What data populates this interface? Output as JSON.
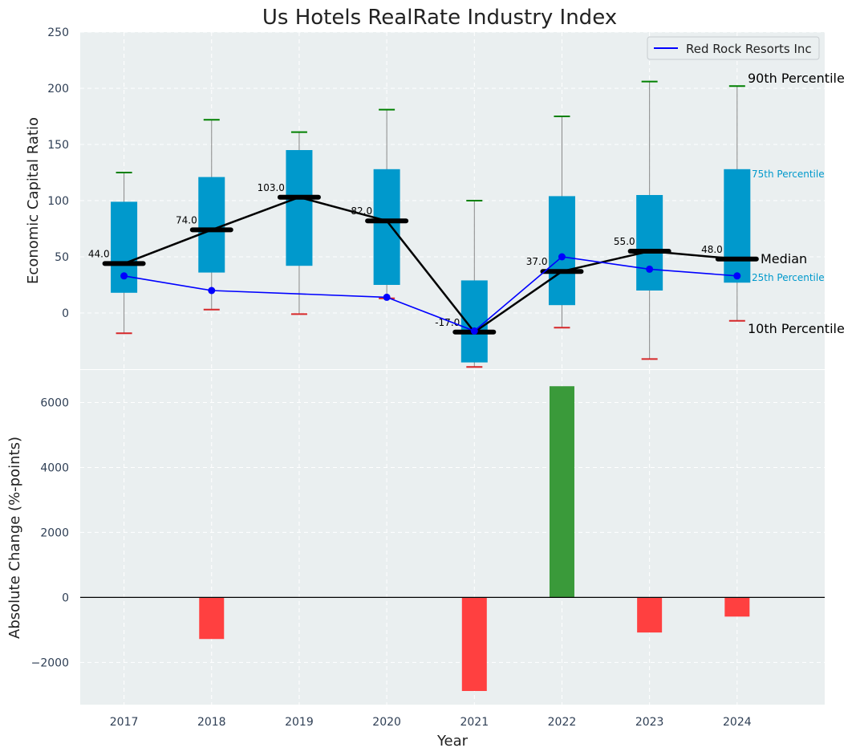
{
  "colors": {
    "panel_bg": "#eaeff0",
    "box": "#0099cc",
    "whisker": "#888888",
    "p90_cap": "#008000",
    "p10_cap": "#d62728",
    "median": "#000000",
    "company_line": "#0000ff",
    "positive_bar": "#3a9a3a",
    "negative_bar": "#ff4040",
    "grid": "#ffffff"
  },
  "chart_data": [
    {
      "type": "box",
      "title": "Us Hotels RealRate Industry Index",
      "ylabel": "Economic Capital Ratio",
      "ylim": [
        -50,
        250
      ],
      "yticks": [
        0,
        50,
        100,
        150,
        200,
        250
      ],
      "categories": [
        "2017",
        "2018",
        "2019",
        "2020",
        "2021",
        "2022",
        "2023",
        "2024"
      ],
      "p10": [
        -18,
        3,
        -1,
        13,
        -48,
        -13,
        -41,
        -7
      ],
      "p25": [
        18,
        36,
        42,
        25,
        -44,
        7,
        20,
        27
      ],
      "median": [
        44.0,
        74.0,
        103.0,
        82.0,
        -17.0,
        37.0,
        55.0,
        48.0
      ],
      "median_labels": [
        "44.0",
        "74.0",
        "103.0",
        "82.0",
        "-17.0",
        "37.0",
        "55.0",
        "48.0"
      ],
      "p75": [
        99,
        121,
        145,
        128,
        29,
        104,
        105,
        128
      ],
      "p90": [
        125,
        172,
        161,
        181,
        100,
        175,
        206,
        202
      ],
      "series": [
        {
          "name": "Red Rock Resorts Inc",
          "x": [
            "2017",
            "2018",
            "2020",
            "2021",
            "2022",
            "2023",
            "2024"
          ],
          "values": [
            33,
            20,
            14,
            -16,
            50,
            39,
            33
          ]
        }
      ],
      "legend": {
        "position": "top-right",
        "entries": [
          "Red Rock Resorts Inc"
        ]
      },
      "annotations": {
        "p90": "90th Percentile",
        "p75": "75th Percentile",
        "median": "Median",
        "p25": "25th Percentile",
        "p10": "10th Percentile"
      }
    },
    {
      "type": "bar",
      "xlabel": "Year",
      "ylabel": "Absolute Change (%-points)",
      "ylim": [
        -3300,
        7000
      ],
      "yticks": [
        -2000,
        0,
        2000,
        4000,
        6000
      ],
      "ytick_labels": [
        "−2000",
        "0",
        "2000",
        "4000",
        "6000"
      ],
      "categories": [
        "2017",
        "2018",
        "2019",
        "2020",
        "2021",
        "2022",
        "2023",
        "2024"
      ],
      "values": [
        null,
        -1280,
        null,
        null,
        -2880,
        6500,
        -1080,
        -590
      ]
    }
  ]
}
